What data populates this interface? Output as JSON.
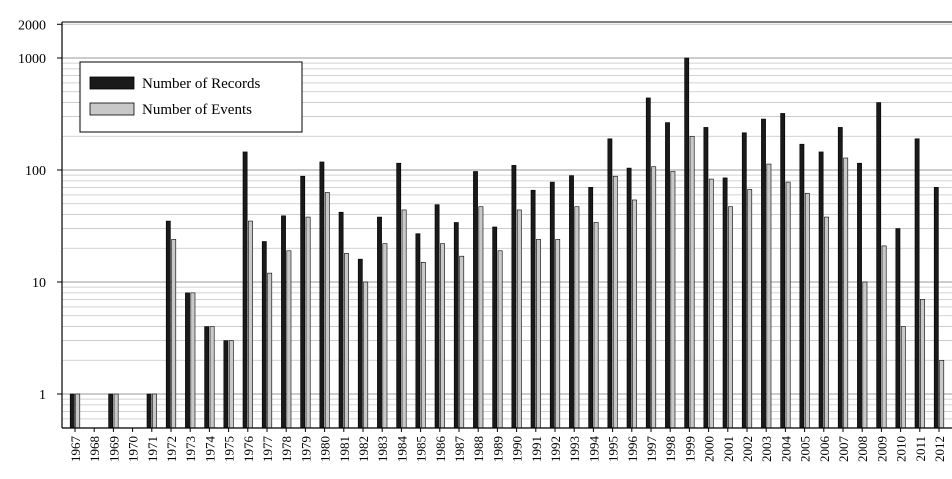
{
  "chart_data": {
    "type": "bar",
    "title": "",
    "xlabel": "",
    "ylabel": "",
    "yscale": "log",
    "ylim": [
      0.5,
      2000
    ],
    "yticks": [
      "2000",
      "1000",
      "100",
      "10",
      "1"
    ],
    "ytick_values": [
      2000,
      1000,
      100,
      10,
      1
    ],
    "grid": true,
    "legend_position": "top-left",
    "categories": [
      "1967",
      "1968",
      "1969",
      "1970",
      "1971",
      "1972",
      "1973",
      "1974",
      "1975",
      "1976",
      "1977",
      "1978",
      "1979",
      "1980",
      "1981",
      "1982",
      "1983",
      "1984",
      "1985",
      "1986",
      "1987",
      "1988",
      "1989",
      "1990",
      "1991",
      "1992",
      "1993",
      "1994",
      "1995",
      "1996",
      "1997",
      "1998",
      "1999",
      "2000",
      "2001",
      "2002",
      "2003",
      "2004",
      "2005",
      "2006",
      "2007",
      "2008",
      "2009",
      "2010",
      "2011",
      "2012"
    ],
    "series": [
      {
        "name": "Number of Records",
        "color": "#1a1a1a",
        "values": [
          1,
          0,
          1,
          0,
          1,
          35,
          8,
          4,
          3,
          145,
          23,
          39,
          88,
          118,
          42,
          16,
          38,
          115,
          27,
          49,
          34,
          97,
          31,
          110,
          66,
          78,
          89,
          70,
          190,
          104,
          440,
          265,
          1000,
          240,
          85,
          215,
          285,
          320,
          170,
          145,
          240,
          115,
          400,
          30,
          190,
          70
        ]
      },
      {
        "name": "Number of Events",
        "color": "#c8c8c8",
        "values": [
          1,
          0,
          1,
          0,
          1,
          24,
          8,
          4,
          3,
          35,
          12,
          19,
          38,
          63,
          18,
          10,
          22,
          44,
          15,
          22,
          17,
          47,
          19,
          44,
          24,
          24,
          47,
          34,
          88,
          54,
          107,
          97,
          200,
          83,
          47,
          67,
          113,
          78,
          62,
          38,
          128,
          10,
          21,
          4,
          7,
          2
        ]
      }
    ]
  }
}
